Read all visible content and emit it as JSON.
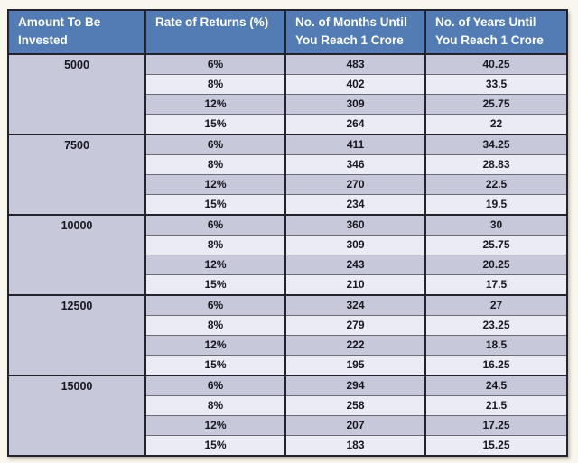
{
  "page": {
    "background": "#f9f6ee"
  },
  "theme": {
    "header_bg": "#527cb3",
    "header_text": "#ffffff",
    "row_dark": "#c7c8d9",
    "row_light": "#eaebf3",
    "border_dark": "#23232e",
    "row_divider": "#6b6b75",
    "cell_text": "#17171f"
  },
  "chart_data": {
    "type": "table",
    "title": "",
    "columns": [
      "Amount To Be Invested",
      "Rate of Returns (%)",
      "No. of Months Until You Reach 1 Crore",
      "No. of Years Until You Reach 1 Crore"
    ],
    "groups": [
      {
        "amount": "5000",
        "rows": [
          [
            "6%",
            "483",
            "40.25"
          ],
          [
            "8%",
            "402",
            "33.5"
          ],
          [
            "12%",
            "309",
            "25.75"
          ],
          [
            "15%",
            "264",
            "22"
          ]
        ]
      },
      {
        "amount": "7500",
        "rows": [
          [
            "6%",
            "411",
            "34.25"
          ],
          [
            "8%",
            "346",
            "28.83"
          ],
          [
            "12%",
            "270",
            "22.5"
          ],
          [
            "15%",
            "234",
            "19.5"
          ]
        ]
      },
      {
        "amount": "10000",
        "rows": [
          [
            "6%",
            "360",
            "30"
          ],
          [
            "8%",
            "309",
            "25.75"
          ],
          [
            "12%",
            "243",
            "20.25"
          ],
          [
            "15%",
            "210",
            "17.5"
          ]
        ]
      },
      {
        "amount": "12500",
        "rows": [
          [
            "6%",
            "324",
            "27"
          ],
          [
            "8%",
            "279",
            "23.25"
          ],
          [
            "12%",
            "222",
            "18.5"
          ],
          [
            "15%",
            "195",
            "16.25"
          ]
        ]
      },
      {
        "amount": "15000",
        "rows": [
          [
            "6%",
            "294",
            "24.5"
          ],
          [
            "8%",
            "258",
            "21.5"
          ],
          [
            "12%",
            "207",
            "17.25"
          ],
          [
            "15%",
            "183",
            "15.25"
          ]
        ]
      }
    ]
  }
}
